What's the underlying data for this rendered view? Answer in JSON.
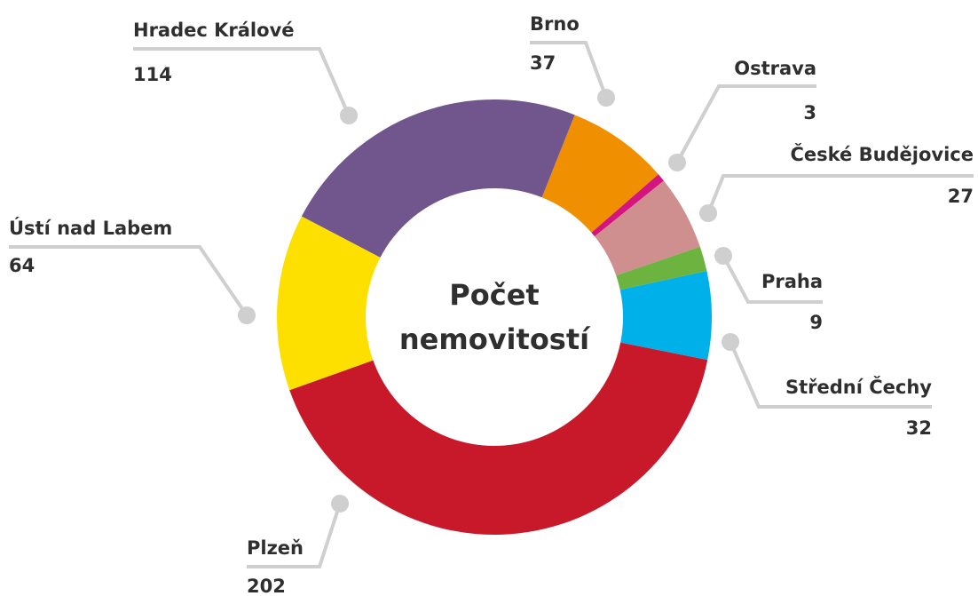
{
  "chart_data": {
    "type": "donut",
    "title": [
      "Počet",
      "nemovitostí"
    ],
    "categories": [
      "Brno",
      "Ostrava",
      "České Budějovice",
      "Praha",
      "Střední Čechy",
      "Plzeň",
      "Ústí nad Labem",
      "Hradec Králové"
    ],
    "values": [
      37,
      3,
      27,
      9,
      32,
      202,
      64,
      114
    ],
    "colors": [
      "#f09000",
      "#d4147f",
      "#d08f8f",
      "#6db33f",
      "#00b0e8",
      "#c8192b",
      "#fde000",
      "#70568c"
    ]
  }
}
